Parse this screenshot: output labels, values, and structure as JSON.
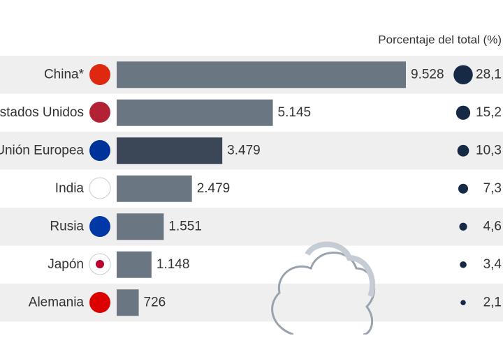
{
  "chart_data": {
    "type": "bar",
    "column_header": "Porcentaje del total (%)",
    "categories": [
      "China*",
      "Estados Unidos",
      "Unión Europea",
      "India",
      "Rusia",
      "Japón",
      "Alemania"
    ],
    "values": [
      9528,
      5145,
      3479,
      2479,
      1551,
      1148,
      726
    ],
    "value_labels": [
      "9.528",
      "5.145",
      "3.479",
      "2.479",
      "1.551",
      "1.148",
      "726"
    ],
    "colors": [
      "#6b7683",
      "#6b7683",
      "#3b4657",
      "#6b7683",
      "#6b7683",
      "#6b7683",
      "#6b7683"
    ],
    "share": {
      "values": [
        28.1,
        15.2,
        10.3,
        7.3,
        4.6,
        3.4,
        2.1
      ],
      "value_labels": [
        "28,1",
        "15,2",
        "10,3",
        "7,3",
        "4,6",
        "3,4",
        "2,1"
      ],
      "color": "#172a45"
    }
  }
}
